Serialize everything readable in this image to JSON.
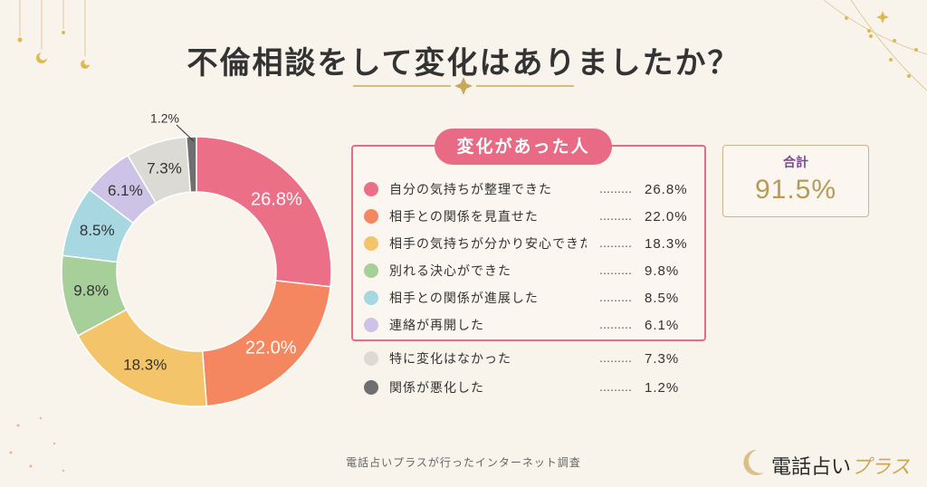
{
  "title": "不倫相談をして変化はありましたか？",
  "group_label": "変化があった人",
  "total": {
    "label": "合計",
    "value": "91.5%"
  },
  "footer": "電話占いプラスが行ったインターネット調査",
  "brand": {
    "main": "電話占い",
    "sub": "プラス"
  },
  "colors": {
    "accent": "#e86a85",
    "gold": "#c8a85a"
  },
  "chart_data": {
    "type": "pie",
    "donut": true,
    "title": "不倫相談をして変化はありましたか？",
    "categories": [
      "自分の気持ちが整理できた",
      "相手との関係を見直せた",
      "相手の気持ちが分かり安心できた",
      "別れる決心ができた",
      "相手との関係が進展した",
      "連絡が再開した",
      "特に変化はなかった",
      "関係が悪化した"
    ],
    "values": [
      26.8,
      22.0,
      18.3,
      9.8,
      8.5,
      6.1,
      7.3,
      1.2
    ],
    "labels": [
      "26.8%",
      "22.0%",
      "18.3%",
      "9.8%",
      "8.5%",
      "6.1%",
      "7.3%",
      "1.2%"
    ],
    "colors": [
      "#ec6f88",
      "#f4875f",
      "#f3c46a",
      "#a7cf9a",
      "#a7d8e2",
      "#cdc3e6",
      "#dcdad5",
      "#6f6f6f"
    ],
    "legend_position": "right"
  }
}
